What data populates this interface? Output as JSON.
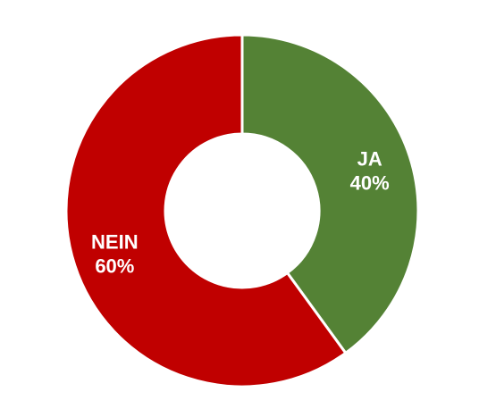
{
  "chart_data": {
    "type": "pie",
    "donut": true,
    "title": "",
    "legend": "none",
    "slices": [
      {
        "label": "JA",
        "value": 40,
        "display": "40%",
        "color": "#548235"
      },
      {
        "label": "NEIN",
        "value": 60,
        "display": "60%",
        "color": "#c00000"
      }
    ]
  }
}
